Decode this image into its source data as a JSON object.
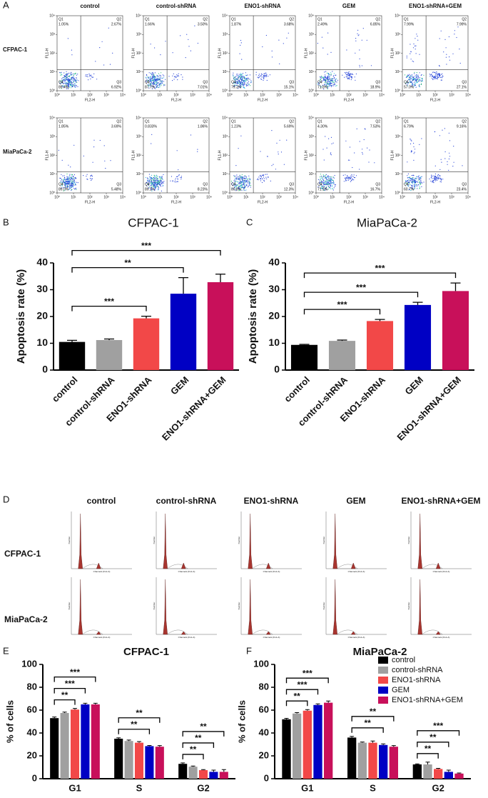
{
  "flow_cytometry": {
    "panel": "A",
    "columns": [
      "control",
      "control-shRNA",
      "ENO1-shRNA",
      "GEM",
      "ENO1-shRNA+GEM"
    ],
    "xlabel": "FL2-H",
    "ylabel": "FL1-H",
    "log": true,
    "quadrants": [
      "Q1",
      "Q2",
      "Q3",
      "Q4"
    ],
    "ticks": [
      {
        "value": 1,
        "label": "10⁰"
      },
      {
        "value": 10,
        "label": "10¹"
      },
      {
        "value": 100,
        "label": "10²"
      },
      {
        "value": 1000,
        "label": "10³"
      },
      {
        "value": 10000,
        "label": "10⁴"
      }
    ],
    "rows": [
      {
        "name": "CFPAC-1",
        "plots": [
          {
            "values": [
              1.05,
              2.67,
              6.92,
              89.4
            ],
            "value_labels": [
              "1.05%",
              "2.67%",
              "6.92%",
              "89.4%"
            ]
          },
          {
            "values": [
              1.66,
              3.5,
              7.01,
              87.7
            ],
            "value_labels": [
              "1.66%",
              "3.50%",
              "7.01%",
              "87.7%"
            ]
          },
          {
            "values": [
              1.87,
              3.68,
              15.1,
              79.3
            ],
            "value_labels": [
              "1.87%",
              "3.68%",
              "15.1%",
              "79.3%"
            ]
          },
          {
            "values": [
              2.49,
              6.85,
              18.9,
              71.8
            ],
            "value_labels": [
              "2.49%",
              "6.85%",
              "18.9%",
              "71.8%"
            ]
          },
          {
            "values": [
              7.99,
              7.99,
              27.1,
              57.0
            ],
            "value_labels": [
              "7.99%",
              "7.99%",
              "27.1%",
              "57.0%"
            ]
          }
        ]
      },
      {
        "name": "MiaPaCa-2",
        "plots": [
          {
            "values": [
              1.85,
              3.69,
              5.48,
              89.0
            ],
            "value_labels": [
              "1.85%",
              "3.69%",
              "5.48%",
              "89.0%"
            ]
          },
          {
            "values": [
              0.833,
              1.86,
              8.23,
              89.1
            ],
            "value_labels": [
              "0.833%",
              "1.86%",
              "8.23%",
              "89.1%"
            ]
          },
          {
            "values": [
              1.23,
              5.69,
              12.3,
              80.8
            ],
            "value_labels": [
              "1.23%",
              "5.69%",
              "12.3%",
              "80.8%"
            ]
          },
          {
            "values": [
              4.3,
              7.53,
              16.7,
              71.5
            ],
            "value_labels": [
              "4.30%",
              "7.53%",
              "16.7%",
              "71.5%"
            ]
          },
          {
            "values": [
              6.79,
              9.16,
              23.4,
              60.7
            ],
            "value_labels": [
              "6.79%",
              "9.16%",
              "23.4%",
              "60.7%"
            ]
          }
        ]
      }
    ]
  },
  "chart_data": [
    {
      "type": "bar",
      "panel": "B",
      "title": "CFPAC-1",
      "ylabel": "Apoptosis rate (%)",
      "categories": [
        "control",
        "control-shRNA",
        "ENO1-shRNA",
        "GEM",
        "ENO1-shRNA+GEM"
      ],
      "values": [
        10.5,
        11.2,
        19.3,
        28.5,
        32.8
      ],
      "errors": [
        0.6,
        0.4,
        0.8,
        6.0,
        3.0
      ],
      "colors": [
        "#000000",
        "#a0a0a0",
        "#f24848",
        "#0000c4",
        "#c8105a"
      ],
      "ylim": [
        0,
        40
      ],
      "yticks": [
        0,
        10,
        20,
        30,
        40
      ],
      "significance": [
        {
          "groups": [
            "control",
            "ENO1-shRNA"
          ],
          "label": "***"
        },
        {
          "groups": [
            "control",
            "GEM"
          ],
          "label": "**"
        },
        {
          "groups": [
            "control",
            "ENO1-shRNA+GEM"
          ],
          "label": "***"
        }
      ]
    },
    {
      "type": "bar",
      "panel": "C",
      "title": "MiaPaCa-2",
      "ylabel": "Apoptosis rate (%)",
      "categories": [
        "control",
        "control-shRNA",
        "ENO1-shRNA",
        "GEM",
        "ENO1-shRNA+GEM"
      ],
      "values": [
        9.4,
        10.9,
        18.3,
        24.3,
        29.5
      ],
      "errors": [
        0.2,
        0.3,
        0.6,
        1.0,
        3.0
      ],
      "colors": [
        "#000000",
        "#a0a0a0",
        "#f24848",
        "#0000c4",
        "#c8105a"
      ],
      "ylim": [
        0,
        40
      ],
      "yticks": [
        0,
        10,
        20,
        30,
        40
      ],
      "significance": [
        {
          "groups": [
            "control",
            "ENO1-shRNA"
          ],
          "label": "***"
        },
        {
          "groups": [
            "control",
            "GEM"
          ],
          "label": "***"
        },
        {
          "groups": [
            "control",
            "ENO1-shRNA+GEM"
          ],
          "label": "***"
        }
      ]
    },
    {
      "type": "grouped_bar",
      "panel": "E",
      "title": "CFPAC-1",
      "ylabel": "% of cells",
      "categories": [
        "G1",
        "S",
        "G2"
      ],
      "series": [
        {
          "name": "control",
          "color": "#000000",
          "values": [
            53,
            35,
            13
          ],
          "errors": [
            1,
            0.8,
            0.8
          ]
        },
        {
          "name": "control-shRNA",
          "color": "#a0a0a0",
          "values": [
            57.5,
            33,
            10.5
          ],
          "errors": [
            0.8,
            0.8,
            0.6
          ]
        },
        {
          "name": "ENO1-shRNA",
          "color": "#f24848",
          "values": [
            60.5,
            31.5,
            7.5
          ],
          "errors": [
            1,
            1,
            0.5
          ]
        },
        {
          "name": "GEM",
          "color": "#0000c4",
          "values": [
            65,
            28.5,
            6
          ],
          "errors": [
            1,
            0.6,
            1.5
          ]
        },
        {
          "name": "ENO1-shRNA+GEM",
          "color": "#c8105a",
          "values": [
            65,
            28,
            6
          ],
          "errors": [
            1,
            1,
            2
          ]
        }
      ],
      "ylim": [
        0,
        100
      ],
      "yticks": [
        0,
        20,
        40,
        60,
        80,
        100
      ],
      "significance": [
        {
          "category": "G1",
          "groups": [
            "control",
            "ENO1-shRNA"
          ],
          "label": "**"
        },
        {
          "category": "G1",
          "groups": [
            "control",
            "GEM"
          ],
          "label": "***"
        },
        {
          "category": "G1",
          "groups": [
            "control",
            "ENO1-shRNA+GEM"
          ],
          "label": "***"
        },
        {
          "category": "S",
          "groups": [
            "control",
            "GEM"
          ],
          "label": "**"
        },
        {
          "category": "S",
          "groups": [
            "control",
            "ENO1-shRNA+GEM"
          ],
          "label": "**"
        },
        {
          "category": "G2",
          "groups": [
            "control",
            "ENO1-shRNA"
          ],
          "label": "**"
        },
        {
          "category": "G2",
          "groups": [
            "control",
            "GEM"
          ],
          "label": "**"
        },
        {
          "category": "G2",
          "groups": [
            "control",
            "ENO1-shRNA+GEM"
          ],
          "label": "**"
        }
      ]
    },
    {
      "type": "grouped_bar",
      "panel": "F",
      "title": "MiaPaCa-2",
      "ylabel": "% of cells",
      "legend": "upper right",
      "categories": [
        "G1",
        "S",
        "G2"
      ],
      "series": [
        {
          "name": "control",
          "color": "#000000",
          "values": [
            52,
            36,
            12.5
          ],
          "errors": [
            0.8,
            1,
            0.5
          ]
        },
        {
          "name": "control-shRNA",
          "color": "#a0a0a0",
          "values": [
            57,
            31.5,
            12.5
          ],
          "errors": [
            0.8,
            0.6,
            2
          ]
        },
        {
          "name": "ENO1-shRNA",
          "color": "#f24848",
          "values": [
            59.5,
            31.5,
            8.5
          ],
          "errors": [
            1,
            1.5,
            0.6
          ]
        },
        {
          "name": "GEM",
          "color": "#0000c4",
          "values": [
            64.5,
            29.5,
            6
          ],
          "errors": [
            1,
            1,
            1.5
          ]
        },
        {
          "name": "ENO1-shRNA+GEM",
          "color": "#c8105a",
          "values": [
            66.5,
            28,
            4.5
          ],
          "errors": [
            1.5,
            1,
            0.5
          ]
        }
      ],
      "ylim": [
        0,
        100
      ],
      "yticks": [
        0,
        20,
        40,
        60,
        80,
        100
      ],
      "significance": [
        {
          "category": "G1",
          "groups": [
            "control",
            "ENO1-shRNA"
          ],
          "label": "**"
        },
        {
          "category": "G1",
          "groups": [
            "control",
            "GEM"
          ],
          "label": "***"
        },
        {
          "category": "G1",
          "groups": [
            "control",
            "ENO1-shRNA+GEM"
          ],
          "label": "***"
        },
        {
          "category": "S",
          "groups": [
            "control",
            "GEM"
          ],
          "label": "**"
        },
        {
          "category": "S",
          "groups": [
            "control",
            "ENO1-shRNA+GEM"
          ],
          "label": "**"
        },
        {
          "category": "G2",
          "groups": [
            "control",
            "ENO1-shRNA"
          ],
          "label": "**"
        },
        {
          "category": "G2",
          "groups": [
            "control",
            "GEM"
          ],
          "label": "**"
        },
        {
          "category": "G2",
          "groups": [
            "control",
            "ENO1-shRNA+GEM"
          ],
          "label": "***"
        }
      ]
    }
  ],
  "cell_cycle": {
    "panel": "D",
    "columns": [
      "control",
      "control-shRNA",
      "ENO1-shRNA",
      "GEM",
      "ENO1-shRNA+GEM"
    ],
    "rows": [
      "CFPAC-1",
      "MiaPaCa-2"
    ],
    "xlabel": "Channels (FL2-A)",
    "ylabel": "Number"
  }
}
